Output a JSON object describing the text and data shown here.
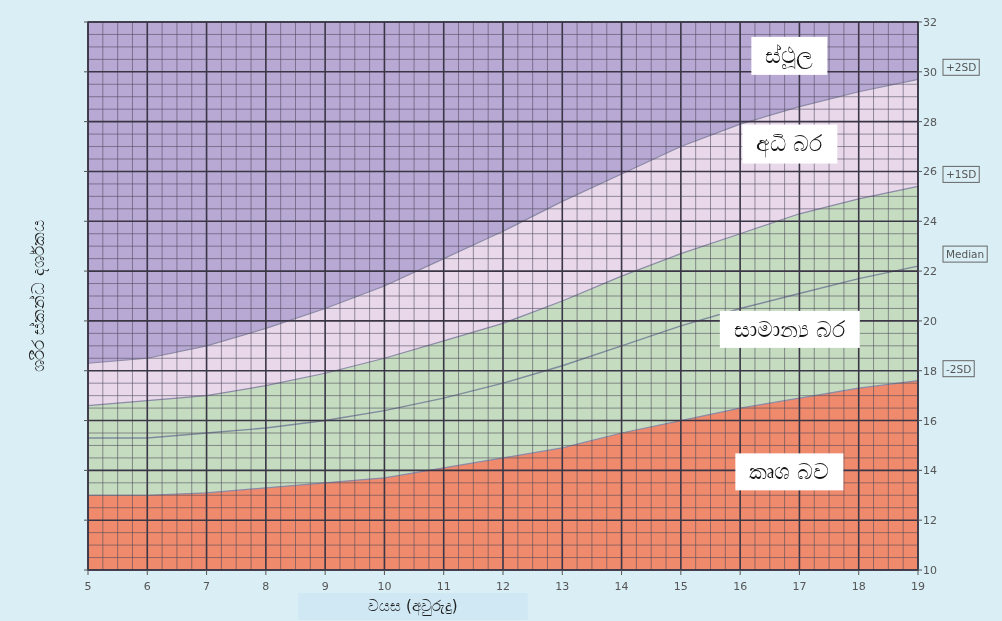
{
  "chart_data": {
    "type": "area",
    "xlabel": "වයස (අවුරුදු)",
    "ylabel": "ශරීර ස්කන්ධ දර්ශකය",
    "x": [
      5,
      6,
      7,
      8,
      9,
      10,
      11,
      12,
      13,
      14,
      15,
      16,
      17,
      18,
      19
    ],
    "series": [
      {
        "name": "+2SD",
        "type": "area",
        "color": "#e8d8ea",
        "values": [
          18.3,
          18.5,
          19.0,
          19.7,
          20.5,
          21.4,
          22.5,
          23.6,
          24.8,
          25.9,
          27.0,
          27.9,
          28.6,
          29.2,
          29.7
        ]
      },
      {
        "name": "+1SD",
        "type": "area",
        "color": "#c5dcc0",
        "values": [
          16.6,
          16.8,
          17.0,
          17.4,
          17.9,
          18.5,
          19.2,
          19.9,
          20.8,
          21.8,
          22.7,
          23.5,
          24.3,
          24.9,
          25.4
        ]
      },
      {
        "name": "Median",
        "type": "line",
        "color": "#7f8a9c",
        "values": [
          15.3,
          15.3,
          15.5,
          15.7,
          16.0,
          16.4,
          16.9,
          17.5,
          18.2,
          19.0,
          19.8,
          20.5,
          21.1,
          21.7,
          22.2
        ]
      },
      {
        "name": "-2SD",
        "type": "area",
        "color": "#ef8a6c",
        "values": [
          13.0,
          13.0,
          13.1,
          13.3,
          13.5,
          13.7,
          14.1,
          14.5,
          14.9,
          15.5,
          16.0,
          16.5,
          16.9,
          17.3,
          17.6
        ]
      }
    ],
    "xlim": [
      5,
      19
    ],
    "xticks": [
      5,
      6,
      7,
      8,
      9,
      10,
      11,
      12,
      13,
      14,
      15,
      16,
      17,
      18,
      19
    ],
    "ylim": [
      10,
      32
    ],
    "yticks": [
      10,
      12,
      14,
      16,
      18,
      20,
      22,
      24,
      26,
      28,
      30,
      32
    ],
    "grid": true,
    "legend": false,
    "annotations": [
      "ස්ථූල",
      "අධි බර",
      "සාමාන්‍ය බර",
      "කෘශ බව"
    ]
  }
}
